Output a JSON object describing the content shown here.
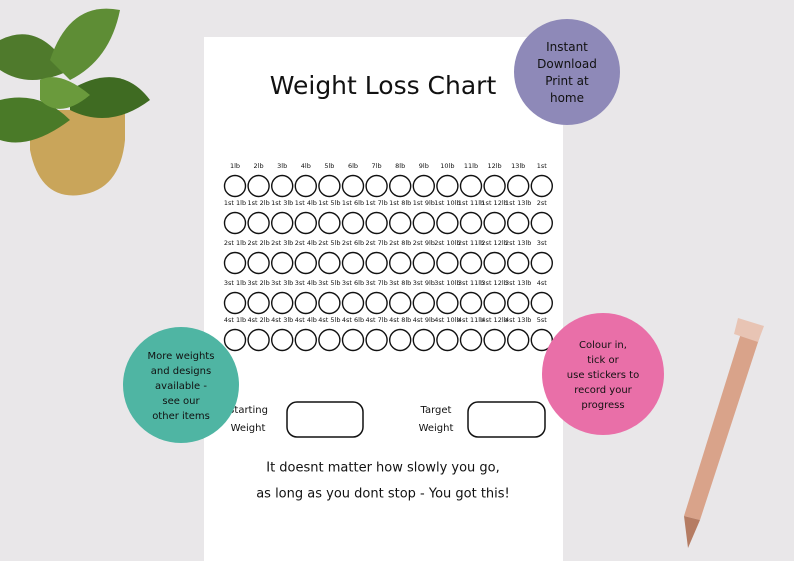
{
  "sheet": {
    "title": "Weight Loss Chart",
    "grid": {
      "rows": [
        [
          "1lb",
          "2lb",
          "3lb",
          "4lb",
          "5lb",
          "6lb",
          "7lb",
          "8lb",
          "9lb",
          "10lb",
          "11lb",
          "12lb",
          "13lb",
          "1st"
        ],
        [
          "1st 1lb",
          "1st 2lb",
          "1st 3lb",
          "1st 4lb",
          "1st 5lb",
          "1st 6lb",
          "1st 7lb",
          "1st 8lb",
          "1st 9lb",
          "1st 10lb",
          "1st 11lb",
          "1st 12lb",
          "1st 13lb",
          "2st"
        ],
        [
          "2st 1lb",
          "2st 2lb",
          "2st 3lb",
          "2st 4lb",
          "2st 5lb",
          "2st 6lb",
          "2st 7lb",
          "2st 8lb",
          "2st 9lb",
          "2st 10lb",
          "2st 11lb",
          "2st 12lb",
          "2st 13lb",
          "3st"
        ],
        [
          "3st 1lb",
          "3st 2lb",
          "3st 3lb",
          "3st 4lb",
          "3st 5lb",
          "3st 6lb",
          "3st 7lb",
          "3st 8lb",
          "3st 9lb",
          "3st 10lb",
          "3st 11lb",
          "3st 12lb",
          "3st 13lb",
          "4st"
        ],
        [
          "4st 1lb",
          "4st 2lb",
          "4st 3lb",
          "4st 4lb",
          "4st 5lb",
          "4st 6lb",
          "4st 7lb",
          "4st 8lb",
          "4st 9lb",
          "4st 10lb",
          "4st 11lb",
          "4st 12lb",
          "4st 13lb",
          "5st"
        ]
      ]
    },
    "starting_weight": [
      "Starting",
      "Weight"
    ],
    "target_weight": [
      "Target",
      "Weight"
    ],
    "quote": [
      "It doesnt matter how slowly you go,",
      "as long as you dont stop - You got this!"
    ]
  },
  "badges": {
    "download": [
      "Instant",
      "Download",
      "Print at",
      "home"
    ],
    "more": [
      "More weights",
      "and designs",
      "available -",
      "see our",
      "other items"
    ],
    "colour": [
      "Colour in,",
      "tick or",
      "use stickers to",
      "record your",
      "progress"
    ]
  }
}
